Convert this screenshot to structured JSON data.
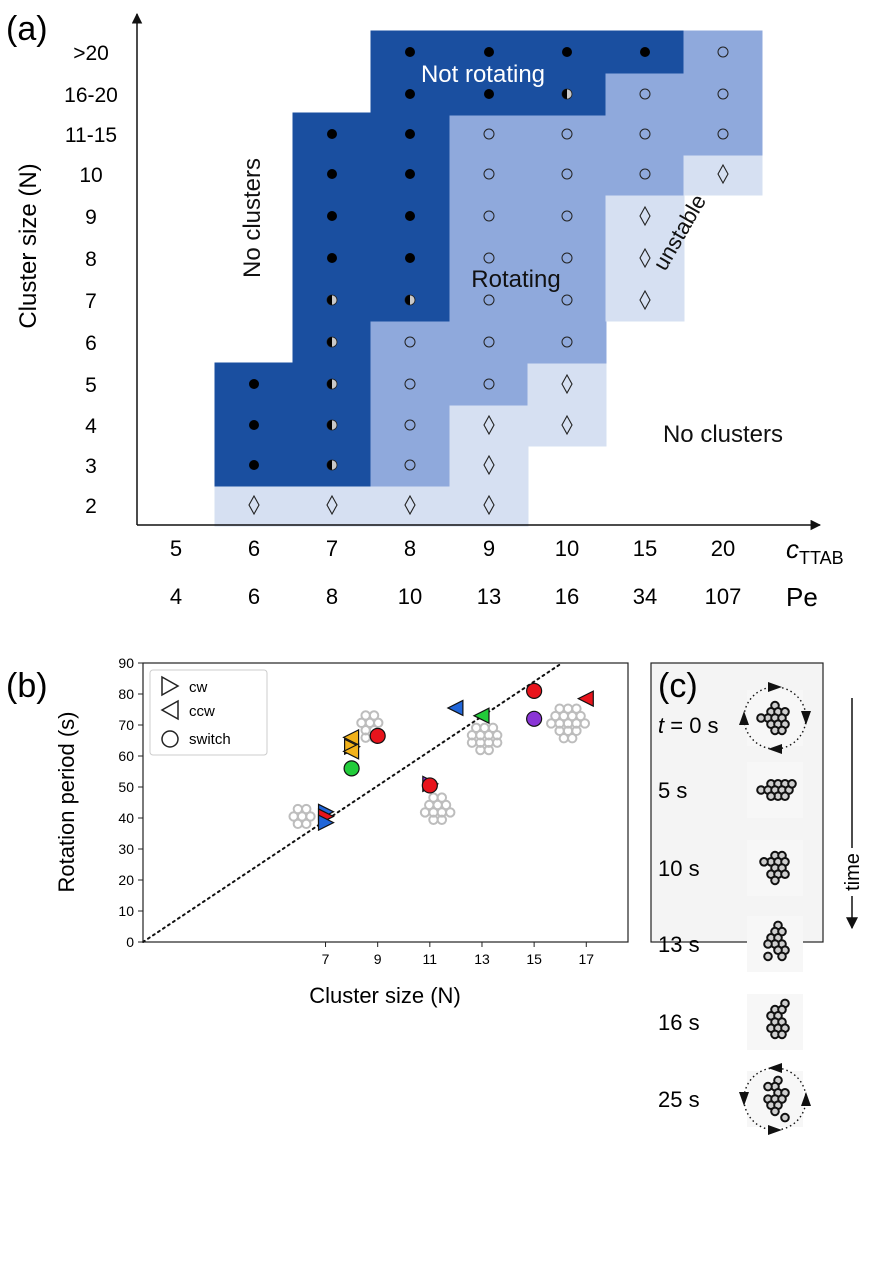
{
  "colors": {
    "not_rotating": "#1a4fa0",
    "rotating": "#8fa9dc",
    "unstable": "#d6e0f2",
    "marker_fill_ccw": "#ffffff"
  },
  "panel_labels": {
    "a": "(a)",
    "b": "(b)",
    "c": "(c)"
  },
  "chart_data": [
    {
      "type": "heatmap",
      "panel": "a",
      "ylabel": "Cluster size (N)",
      "y_categories": [
        "2",
        "3",
        "4",
        "5",
        "6",
        "7",
        "8",
        "9",
        "10",
        "11-15",
        "16-20",
        ">20"
      ],
      "x_categories": [
        "5",
        "6",
        "7",
        "8",
        "9",
        "10",
        "15",
        "20"
      ],
      "x_name": "c",
      "x_name_sub": "TTAB",
      "pe_values": [
        "4",
        "6",
        "8",
        "10",
        "13",
        "16",
        "34",
        "107"
      ],
      "pe_label": "Pe",
      "region_labels": {
        "not_rotating": "Not rotating",
        "rotating": "Rotating",
        "unstable": "unstable",
        "no_clusters_left": "No clusters",
        "no_clusters_right": "No clusters"
      },
      "cells": [
        {
          "x": "6",
          "y": "2",
          "region": "unstable",
          "marker": "diamond"
        },
        {
          "x": "6",
          "y": "3",
          "region": "not_rotating",
          "marker": "filled"
        },
        {
          "x": "6",
          "y": "4",
          "region": "not_rotating",
          "marker": "filled"
        },
        {
          "x": "6",
          "y": "5",
          "region": "not_rotating",
          "marker": "filled"
        },
        {
          "x": "7",
          "y": "2",
          "region": "unstable",
          "marker": "diamond"
        },
        {
          "x": "7",
          "y": "3",
          "region": "not_rotating",
          "marker": "half"
        },
        {
          "x": "7",
          "y": "4",
          "region": "not_rotating",
          "marker": "half"
        },
        {
          "x": "7",
          "y": "5",
          "region": "not_rotating",
          "marker": "half"
        },
        {
          "x": "7",
          "y": "6",
          "region": "not_rotating",
          "marker": "half"
        },
        {
          "x": "7",
          "y": "7",
          "region": "not_rotating",
          "marker": "half"
        },
        {
          "x": "7",
          "y": "8",
          "region": "not_rotating",
          "marker": "filled"
        },
        {
          "x": "7",
          "y": "9",
          "region": "not_rotating",
          "marker": "filled"
        },
        {
          "x": "7",
          "y": "10",
          "region": "not_rotating",
          "marker": "filled"
        },
        {
          "x": "7",
          "y": "11-15",
          "region": "not_rotating",
          "marker": "filled"
        },
        {
          "x": "8",
          "y": "2",
          "region": "unstable",
          "marker": "diamond"
        },
        {
          "x": "8",
          "y": "3",
          "region": "rotating",
          "marker": "open"
        },
        {
          "x": "8",
          "y": "4",
          "region": "rotating",
          "marker": "open"
        },
        {
          "x": "8",
          "y": "5",
          "region": "rotating",
          "marker": "open"
        },
        {
          "x": "8",
          "y": "6",
          "region": "rotating",
          "marker": "open"
        },
        {
          "x": "8",
          "y": "7",
          "region": "not_rotating",
          "marker": "half"
        },
        {
          "x": "8",
          "y": "8",
          "region": "not_rotating",
          "marker": "filled"
        },
        {
          "x": "8",
          "y": "9",
          "region": "not_rotating",
          "marker": "filled"
        },
        {
          "x": "8",
          "y": "10",
          "region": "not_rotating",
          "marker": "filled"
        },
        {
          "x": "8",
          "y": "11-15",
          "region": "not_rotating",
          "marker": "filled"
        },
        {
          "x": "8",
          "y": "16-20",
          "region": "not_rotating",
          "marker": "filled"
        },
        {
          "x": "8",
          "y": ">20",
          "region": "not_rotating",
          "marker": "filled"
        },
        {
          "x": "9",
          "y": "2",
          "region": "unstable",
          "marker": "diamond"
        },
        {
          "x": "9",
          "y": "3",
          "region": "unstable",
          "marker": "diamond"
        },
        {
          "x": "9",
          "y": "4",
          "region": "unstable",
          "marker": "diamond"
        },
        {
          "x": "9",
          "y": "5",
          "region": "rotating",
          "marker": "open"
        },
        {
          "x": "9",
          "y": "6",
          "region": "rotating",
          "marker": "open"
        },
        {
          "x": "9",
          "y": "7",
          "region": "rotating",
          "marker": "open"
        },
        {
          "x": "9",
          "y": "8",
          "region": "rotating",
          "marker": "open"
        },
        {
          "x": "9",
          "y": "9",
          "region": "rotating",
          "marker": "open"
        },
        {
          "x": "9",
          "y": "10",
          "region": "rotating",
          "marker": "open"
        },
        {
          "x": "9",
          "y": "11-15",
          "region": "rotating",
          "marker": "open"
        },
        {
          "x": "9",
          "y": "16-20",
          "region": "not_rotating",
          "marker": "filled"
        },
        {
          "x": "9",
          "y": ">20",
          "region": "not_rotating",
          "marker": "filled"
        },
        {
          "x": "10",
          "y": "4",
          "region": "unstable",
          "marker": "diamond"
        },
        {
          "x": "10",
          "y": "5",
          "region": "unstable",
          "marker": "diamond"
        },
        {
          "x": "10",
          "y": "6",
          "region": "rotating",
          "marker": "open"
        },
        {
          "x": "10",
          "y": "7",
          "region": "rotating",
          "marker": "open"
        },
        {
          "x": "10",
          "y": "8",
          "region": "rotating",
          "marker": "open"
        },
        {
          "x": "10",
          "y": "9",
          "region": "rotating",
          "marker": "open"
        },
        {
          "x": "10",
          "y": "10",
          "region": "rotating",
          "marker": "open"
        },
        {
          "x": "10",
          "y": "11-15",
          "region": "rotating",
          "marker": "open"
        },
        {
          "x": "10",
          "y": "16-20",
          "region": "not_rotating",
          "marker": "half"
        },
        {
          "x": "10",
          "y": ">20",
          "region": "not_rotating",
          "marker": "filled"
        },
        {
          "x": "15",
          "y": "7",
          "region": "unstable",
          "marker": "diamond"
        },
        {
          "x": "15",
          "y": "8",
          "region": "unstable",
          "marker": "diamond"
        },
        {
          "x": "15",
          "y": "9",
          "region": "unstable",
          "marker": "diamond"
        },
        {
          "x": "15",
          "y": "10",
          "region": "rotating",
          "marker": "open"
        },
        {
          "x": "15",
          "y": "11-15",
          "region": "rotating",
          "marker": "open"
        },
        {
          "x": "15",
          "y": "16-20",
          "region": "rotating",
          "marker": "open"
        },
        {
          "x": "15",
          "y": ">20",
          "region": "not_rotating",
          "marker": "filled"
        },
        {
          "x": "20",
          "y": "10",
          "region": "unstable",
          "marker": "diamond"
        },
        {
          "x": "20",
          "y": "11-15",
          "region": "rotating",
          "marker": "open"
        },
        {
          "x": "20",
          "y": "16-20",
          "region": "rotating",
          "marker": "open"
        },
        {
          "x": "20",
          "y": ">20",
          "region": "rotating",
          "marker": "open"
        }
      ]
    },
    {
      "type": "scatter",
      "panel": "b",
      "xlabel": "Cluster size (N)",
      "ylabel": "Rotation period (s)",
      "xlim": [
        0,
        18.6
      ],
      "ylim": [
        0,
        90
      ],
      "x_ticks": [
        "7",
        "9",
        "11",
        "13",
        "15",
        "17"
      ],
      "y_ticks": [
        "0",
        "10",
        "20",
        "30",
        "40",
        "50",
        "60",
        "70",
        "80",
        "90"
      ],
      "legend": [
        {
          "symbol": "triangle-right",
          "label": "cw"
        },
        {
          "symbol": "triangle-left",
          "label": "ccw"
        },
        {
          "symbol": "circle",
          "label": "switch"
        }
      ],
      "reference_line": {
        "style": "dotted",
        "slope": 5.6,
        "intercept": 0
      },
      "points": [
        {
          "x": 7,
          "y": 42,
          "marker": "triangle-right",
          "color": "#2166d9"
        },
        {
          "x": 7,
          "y": 40.5,
          "marker": "triangle-right",
          "color": "#e8141c"
        },
        {
          "x": 7,
          "y": 38.5,
          "marker": "triangle-right",
          "color": "#2166d9"
        },
        {
          "x": 8,
          "y": 66,
          "marker": "triangle-left",
          "color": "#f2b21a"
        },
        {
          "x": 8,
          "y": 63,
          "marker": "triangle-right",
          "color": "#f2b21a"
        },
        {
          "x": 8,
          "y": 61.5,
          "marker": "triangle-left",
          "color": "#f2b21a"
        },
        {
          "x": 8,
          "y": 56,
          "marker": "circle",
          "color": "#22cc3a"
        },
        {
          "x": 9,
          "y": 66.5,
          "marker": "circle",
          "color": "#e8141c"
        },
        {
          "x": 11,
          "y": 51,
          "marker": "triangle-right",
          "color": "#8a35d6"
        },
        {
          "x": 11,
          "y": 50.5,
          "marker": "circle",
          "color": "#e8141c"
        },
        {
          "x": 12,
          "y": 75.5,
          "marker": "triangle-left",
          "color": "#2166d9"
        },
        {
          "x": 13,
          "y": 73,
          "marker": "triangle-left",
          "color": "#22cc3a"
        },
        {
          "x": 15,
          "y": 81,
          "marker": "circle",
          "color": "#e8141c"
        },
        {
          "x": 15,
          "y": 72,
          "marker": "circle",
          "color": "#8a35d6"
        },
        {
          "x": 17,
          "y": 78.5,
          "marker": "triangle-left",
          "color": "#e8141c"
        }
      ]
    }
  ],
  "panel_c": {
    "frames": [
      {
        "label": "t = 0 s",
        "t_var": "t",
        "t_rest": " = 0 s"
      },
      {
        "label": "5 s"
      },
      {
        "label": "10 s"
      },
      {
        "label": "13 s"
      },
      {
        "label": "16 s"
      },
      {
        "label": "25 s"
      }
    ],
    "time_label": "time"
  }
}
